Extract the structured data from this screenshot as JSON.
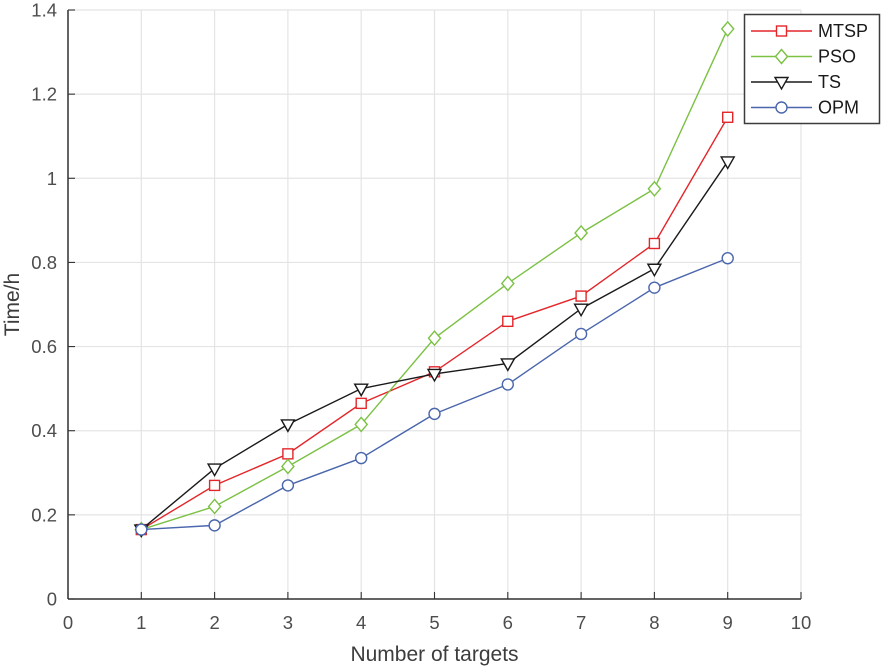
{
  "figure": {
    "background": "#ffffff"
  },
  "chart_data": {
    "type": "line",
    "title": "",
    "xlabel": "Number of targets",
    "ylabel": "Time/h",
    "xlim": [
      0,
      10
    ],
    "ylim": [
      0,
      1.4
    ],
    "xticks": [
      0,
      1,
      2,
      3,
      4,
      5,
      6,
      7,
      8,
      9,
      10
    ],
    "xtick_labels": [
      "0",
      "1",
      "2",
      "3",
      "4",
      "5",
      "6",
      "7",
      "8",
      "9",
      "10"
    ],
    "yticks": [
      0,
      0.2,
      0.4,
      0.6,
      0.8,
      1,
      1.2,
      1.4
    ],
    "ytick_labels": [
      "0",
      "0.2",
      "0.4",
      "0.6",
      "0.8",
      "1",
      "1.2",
      "1.4"
    ],
    "grid": true,
    "x": [
      1,
      2,
      3,
      4,
      5,
      6,
      7,
      8,
      9
    ],
    "series": [
      {
        "name": "MTSP",
        "color": "#e3262a",
        "marker": "square",
        "values": [
          0.165,
          0.27,
          0.345,
          0.465,
          0.54,
          0.66,
          0.72,
          0.845,
          1.145
        ]
      },
      {
        "name": "PSO",
        "color": "#7bc144",
        "marker": "diamond",
        "values": [
          0.165,
          0.22,
          0.315,
          0.415,
          0.62,
          0.75,
          0.87,
          0.975,
          1.355
        ]
      },
      {
        "name": "TS",
        "color": "#1a1a1a",
        "marker": "triangle-down",
        "values": [
          0.165,
          0.31,
          0.415,
          0.5,
          0.535,
          0.56,
          0.69,
          0.785,
          1.04
        ]
      },
      {
        "name": "OPM",
        "color": "#4a66ac",
        "marker": "circle",
        "values": [
          0.165,
          0.175,
          0.27,
          0.335,
          0.44,
          0.51,
          0.63,
          0.74,
          0.81
        ]
      }
    ],
    "legend": {
      "position": "top-right",
      "entries": [
        "MTSP",
        "PSO",
        "TS",
        "OPM"
      ]
    }
  },
  "style": {
    "grid_color": "#e4e4e4",
    "axis_color": "#333333",
    "tick_label_color": "#4d4d4d",
    "axis_title_color": "#3d3d3d",
    "legend_border_color": "#3c3c3c",
    "legend_background": "#ffffff",
    "marker_fill": "#ffffff"
  }
}
